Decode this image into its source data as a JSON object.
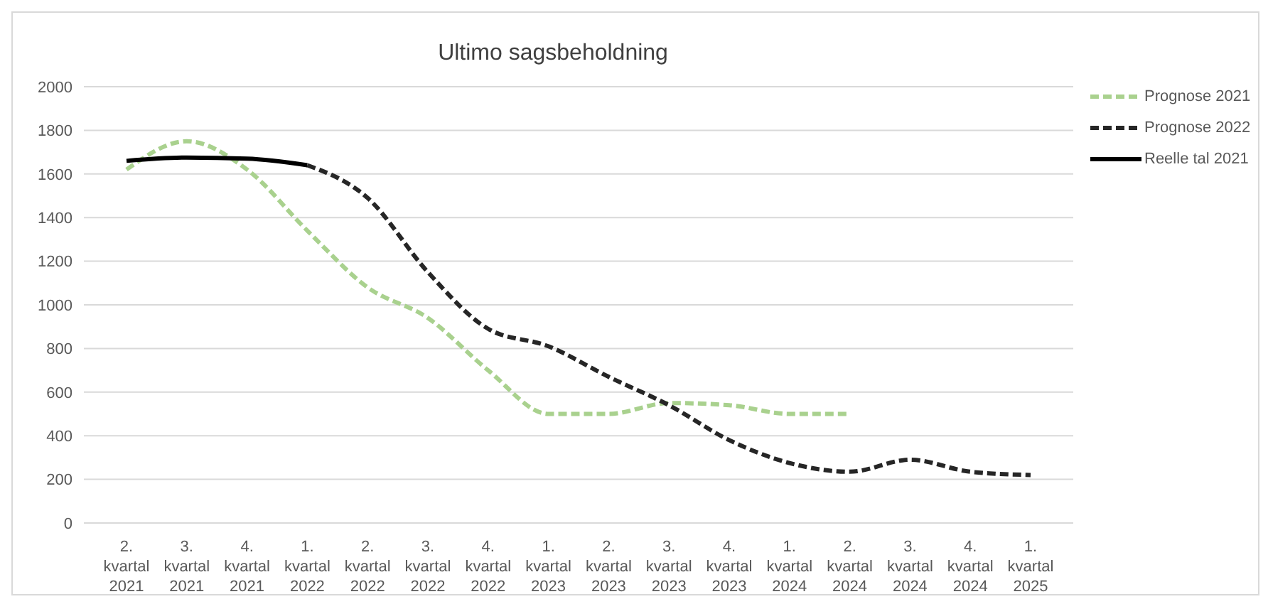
{
  "chart_data": {
    "type": "line",
    "title": "Ultimo sagsbeholdning",
    "categories": [
      "2. kvartal 2021",
      "3. kvartal 2021",
      "4. kvartal 2021",
      "1. kvartal 2022",
      "2. kvartal 2022",
      "3. kvartal 2022",
      "4. kvartal 2022",
      "1. kvartal 2023",
      "2. kvartal 2023",
      "3. kvartal 2023",
      "4. kvartal 2023",
      "1. kvartal 2024",
      "2. kvartal 2024",
      "3. kvartal 2024",
      "4. kvartal 2024",
      "1. kvartal 2025"
    ],
    "series": [
      {
        "name": "Prognose 2021",
        "color": "#a9d18e",
        "line_style": "dashed",
        "values": [
          1620,
          1750,
          1620,
          1340,
          1080,
          940,
          700,
          500,
          500,
          550,
          540,
          500,
          500,
          null,
          null,
          null
        ]
      },
      {
        "name": "Prognose 2022",
        "color": "#262626",
        "line_style": "dashed",
        "values": [
          null,
          null,
          null,
          1640,
          1490,
          1150,
          890,
          810,
          670,
          540,
          380,
          275,
          235,
          290,
          235,
          220
        ]
      },
      {
        "name": "Reelle tal 2021",
        "color": "#000000",
        "line_style": "solid",
        "values": [
          1660,
          1675,
          1670,
          1640,
          null,
          null,
          null,
          null,
          null,
          null,
          null,
          null,
          null,
          null,
          null,
          null
        ]
      }
    ],
    "ylim": [
      0,
      2000
    ],
    "yticks": [
      0,
      200,
      400,
      600,
      800,
      1000,
      1200,
      1400,
      1600,
      1800,
      2000
    ],
    "grid": "y",
    "legend": "top right",
    "marker": "none"
  }
}
